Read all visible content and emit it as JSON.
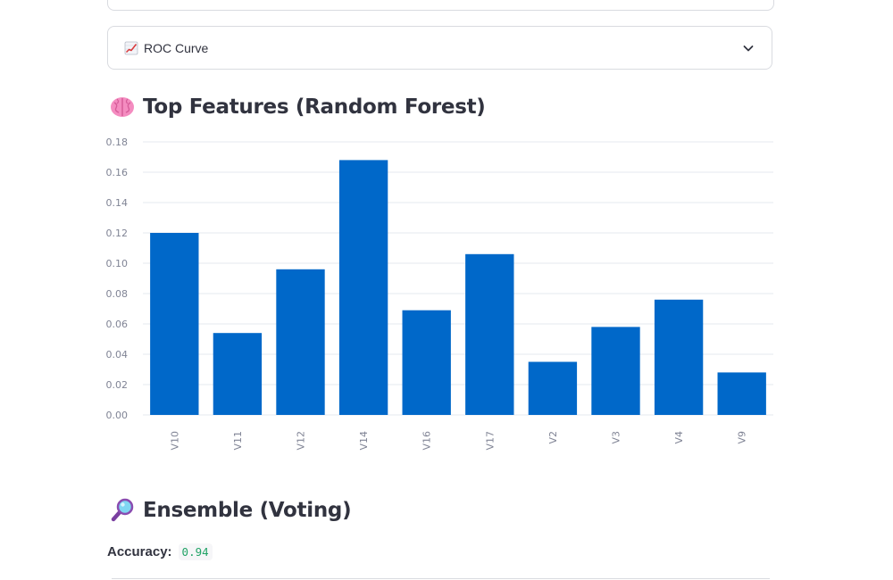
{
  "expander": {
    "label": "ROC Curve",
    "icon": "chart-increasing-icon",
    "toggle_icon": "chevron-down-icon"
  },
  "features_section": {
    "title": "Top Features (Random Forest)",
    "icon": "brain-icon"
  },
  "ensemble_section": {
    "title": "Ensemble (Voting)",
    "icon": "magnifier-icon",
    "accuracy_label": "Accuracy:",
    "accuracy_value": "0.94"
  },
  "colors": {
    "bar": "#0068c9",
    "grid": "#e6e9ef",
    "tick": "#808495",
    "accuracy": "#21a366"
  },
  "chart_data": {
    "type": "bar",
    "categories": [
      "V10",
      "V11",
      "V12",
      "V14",
      "V16",
      "V17",
      "V2",
      "V3",
      "V4",
      "V9"
    ],
    "values": [
      0.12,
      0.054,
      0.096,
      0.168,
      0.069,
      0.106,
      0.035,
      0.058,
      0.076,
      0.028
    ],
    "yticks": [
      "0.00",
      "0.02",
      "0.04",
      "0.06",
      "0.08",
      "0.10",
      "0.12",
      "0.14",
      "0.16",
      "0.18"
    ],
    "ylim": [
      0,
      0.18
    ],
    "grid": true,
    "xlabel": "",
    "ylabel": "",
    "legend": "none"
  }
}
